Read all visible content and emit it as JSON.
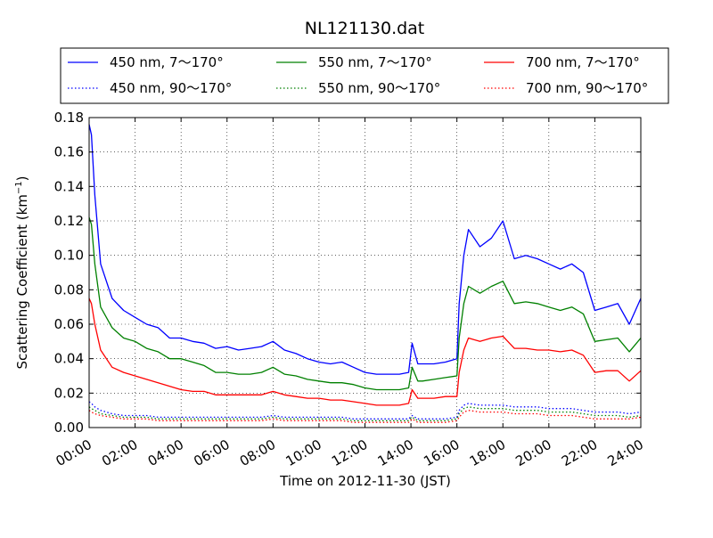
{
  "chart_data": {
    "type": "line",
    "title": "NL121130.dat",
    "xlabel": "Time on 2012-11-30 (JST)",
    "ylabel_main": "Scattering Coefficient (km",
    "ylabel_sup": "−1",
    "ylabel_close": ")",
    "xlim": [
      0,
      24
    ],
    "ylim": [
      0,
      0.18
    ],
    "grid": true,
    "legend_position": "top",
    "x_ticks": [
      0,
      2,
      4,
      6,
      8,
      10,
      12,
      14,
      16,
      18,
      20,
      22,
      24
    ],
    "x_tick_labels": [
      "00:00",
      "02:00",
      "04:00",
      "06:00",
      "08:00",
      "10:00",
      "12:00",
      "14:00",
      "16:00",
      "18:00",
      "20:00",
      "22:00",
      "24:00"
    ],
    "y_ticks": [
      0,
      0.02,
      0.04,
      0.06,
      0.08,
      0.1,
      0.12,
      0.14,
      0.16,
      0.18
    ],
    "y_tick_labels": [
      "0.00",
      "0.02",
      "0.04",
      "0.06",
      "0.08",
      "0.10",
      "0.12",
      "0.14",
      "0.16",
      "0.18"
    ],
    "x": [
      0,
      0.1,
      0.25,
      0.5,
      1,
      1.5,
      2,
      2.5,
      3,
      3.5,
      4,
      4.5,
      5,
      5.5,
      6,
      6.5,
      7,
      7.5,
      8,
      8.5,
      9,
      9.5,
      10,
      10.5,
      11,
      11.5,
      12,
      12.5,
      13,
      13.5,
      13.9,
      14.05,
      14.3,
      14.5,
      15,
      15.5,
      16,
      16.1,
      16.3,
      16.5,
      17,
      17.5,
      18,
      18.5,
      19,
      19.5,
      20,
      20.5,
      21,
      21.5,
      22,
      22.5,
      23,
      23.5,
      24
    ],
    "series": [
      {
        "name": "450 nm, 7～170°",
        "color": "#0000ff",
        "style": "solid",
        "values": [
          0.176,
          0.17,
          0.135,
          0.095,
          0.075,
          0.068,
          0.064,
          0.06,
          0.058,
          0.052,
          0.052,
          0.05,
          0.049,
          0.046,
          0.047,
          0.045,
          0.046,
          0.047,
          0.05,
          0.045,
          0.043,
          0.04,
          0.038,
          0.037,
          0.038,
          0.035,
          0.032,
          0.031,
          0.031,
          0.031,
          0.032,
          0.049,
          0.037,
          0.037,
          0.037,
          0.038,
          0.04,
          0.072,
          0.1,
          0.115,
          0.105,
          0.11,
          0.12,
          0.098,
          0.1,
          0.098,
          0.095,
          0.092,
          0.095,
          0.09,
          0.068,
          0.07,
          0.072,
          0.06,
          0.075
        ]
      },
      {
        "name": "450 nm, 90～170°",
        "color": "#0000ff",
        "style": "dotted",
        "values": [
          0.015,
          0.014,
          0.012,
          0.01,
          0.008,
          0.007,
          0.007,
          0.007,
          0.006,
          0.006,
          0.006,
          0.006,
          0.006,
          0.006,
          0.006,
          0.006,
          0.006,
          0.006,
          0.007,
          0.006,
          0.006,
          0.006,
          0.006,
          0.006,
          0.006,
          0.005,
          0.005,
          0.005,
          0.005,
          0.005,
          0.005,
          0.007,
          0.005,
          0.005,
          0.005,
          0.005,
          0.006,
          0.01,
          0.013,
          0.014,
          0.013,
          0.013,
          0.013,
          0.012,
          0.012,
          0.012,
          0.011,
          0.011,
          0.011,
          0.01,
          0.009,
          0.009,
          0.009,
          0.008,
          0.009
        ]
      },
      {
        "name": "550 nm, 7～170°",
        "color": "#008000",
        "style": "solid",
        "values": [
          0.122,
          0.118,
          0.095,
          0.07,
          0.058,
          0.052,
          0.05,
          0.046,
          0.044,
          0.04,
          0.04,
          0.038,
          0.036,
          0.032,
          0.032,
          0.031,
          0.031,
          0.032,
          0.035,
          0.031,
          0.03,
          0.028,
          0.027,
          0.026,
          0.026,
          0.025,
          0.023,
          0.022,
          0.022,
          0.022,
          0.023,
          0.035,
          0.027,
          0.027,
          0.028,
          0.029,
          0.03,
          0.052,
          0.072,
          0.082,
          0.078,
          0.082,
          0.085,
          0.072,
          0.073,
          0.072,
          0.07,
          0.068,
          0.07,
          0.066,
          0.05,
          0.051,
          0.052,
          0.044,
          0.052
        ]
      },
      {
        "name": "550 nm, 90～170°",
        "color": "#008000",
        "style": "dotted",
        "values": [
          0.012,
          0.011,
          0.01,
          0.008,
          0.007,
          0.006,
          0.006,
          0.006,
          0.005,
          0.005,
          0.005,
          0.005,
          0.005,
          0.005,
          0.005,
          0.005,
          0.005,
          0.005,
          0.006,
          0.005,
          0.005,
          0.005,
          0.005,
          0.005,
          0.005,
          0.004,
          0.004,
          0.004,
          0.004,
          0.004,
          0.004,
          0.006,
          0.004,
          0.004,
          0.004,
          0.004,
          0.005,
          0.008,
          0.011,
          0.012,
          0.011,
          0.011,
          0.011,
          0.01,
          0.01,
          0.01,
          0.009,
          0.009,
          0.009,
          0.008,
          0.007,
          0.007,
          0.007,
          0.006,
          0.007
        ]
      },
      {
        "name": "700 nm, 7～170°",
        "color": "#ff0000",
        "style": "solid",
        "values": [
          0.075,
          0.072,
          0.06,
          0.045,
          0.035,
          0.032,
          0.03,
          0.028,
          0.026,
          0.024,
          0.022,
          0.021,
          0.021,
          0.019,
          0.019,
          0.019,
          0.019,
          0.019,
          0.021,
          0.019,
          0.018,
          0.017,
          0.017,
          0.016,
          0.016,
          0.015,
          0.014,
          0.013,
          0.013,
          0.013,
          0.014,
          0.022,
          0.017,
          0.017,
          0.017,
          0.018,
          0.018,
          0.032,
          0.045,
          0.052,
          0.05,
          0.052,
          0.053,
          0.046,
          0.046,
          0.045,
          0.045,
          0.044,
          0.045,
          0.042,
          0.032,
          0.033,
          0.033,
          0.027,
          0.033
        ]
      },
      {
        "name": "700 nm, 90～170°",
        "color": "#ff0000",
        "style": "dotted",
        "values": [
          0.01,
          0.009,
          0.008,
          0.007,
          0.006,
          0.005,
          0.005,
          0.005,
          0.004,
          0.004,
          0.004,
          0.004,
          0.004,
          0.004,
          0.004,
          0.004,
          0.004,
          0.004,
          0.005,
          0.004,
          0.004,
          0.004,
          0.004,
          0.004,
          0.004,
          0.003,
          0.003,
          0.003,
          0.003,
          0.003,
          0.003,
          0.005,
          0.003,
          0.003,
          0.003,
          0.003,
          0.004,
          0.006,
          0.009,
          0.01,
          0.009,
          0.009,
          0.009,
          0.008,
          0.008,
          0.008,
          0.007,
          0.007,
          0.007,
          0.006,
          0.005,
          0.005,
          0.005,
          0.005,
          0.006
        ]
      }
    ],
    "legend": [
      {
        "label": "450 nm, 7～170°",
        "color": "#0000ff",
        "style": "solid"
      },
      {
        "label": "550 nm, 7～170°",
        "color": "#008000",
        "style": "solid"
      },
      {
        "label": "700 nm, 7～170°",
        "color": "#ff0000",
        "style": "solid"
      },
      {
        "label": "450 nm, 90～170°",
        "color": "#0000ff",
        "style": "dotted"
      },
      {
        "label": "550 nm, 90～170°",
        "color": "#008000",
        "style": "dotted"
      },
      {
        "label": "700 nm, 90～170°",
        "color": "#ff0000",
        "style": "dotted"
      }
    ]
  }
}
